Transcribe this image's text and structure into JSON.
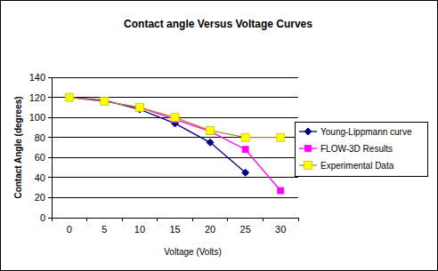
{
  "chart_data": {
    "type": "line",
    "title": "Contact angle Versus Voltage Curves",
    "x_label": "Voltage (Volts)",
    "y_label": "Contact Angle (degrees)",
    "categories": [
      "0",
      "5",
      "10",
      "15",
      "20",
      "25",
      "30"
    ],
    "series": [
      {
        "name": "Young-Lippmann curve",
        "color": "#000080",
        "marker": "diamond",
        "values": [
          120,
          117,
          108,
          94,
          75,
          45,
          null
        ]
      },
      {
        "name": "FLOW-3D Results",
        "color": "#ff00ff",
        "marker": "square",
        "values": [
          120,
          116,
          110,
          98,
          86,
          68,
          27
        ]
      },
      {
        "name": "Experimental Data",
        "color": "#ffff00",
        "marker": "square",
        "values": [
          120,
          116,
          110,
          100,
          87,
          80,
          80
        ]
      }
    ],
    "ylim": [
      0,
      140
    ],
    "yticks": [
      0,
      20,
      40,
      60,
      80,
      100,
      120,
      140
    ],
    "grid": true,
    "legend": "right"
  }
}
